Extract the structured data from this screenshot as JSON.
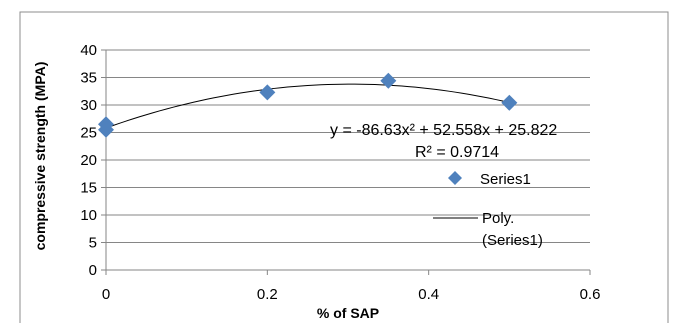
{
  "chart_data": {
    "type": "scatter",
    "xlabel": "% of SAP",
    "ylabel": "compressive strength (MPA)",
    "xlim": [
      0,
      0.6
    ],
    "ylim": [
      0,
      40
    ],
    "x_ticks": [
      0,
      0.2,
      0.4,
      0.6
    ],
    "y_ticks": [
      0,
      5,
      10,
      15,
      20,
      25,
      30,
      35,
      40
    ],
    "grid": "horizontal",
    "series": [
      {
        "name": "Series1",
        "marker": "diamond",
        "color": "#4F81BD",
        "points": [
          {
            "x": 0,
            "y": 26.5
          },
          {
            "x": 0,
            "y": 25.5
          },
          {
            "x": 0.2,
            "y": 32.3
          },
          {
            "x": 0.35,
            "y": 34.4
          },
          {
            "x": 0.5,
            "y": 30.4
          }
        ]
      }
    ],
    "trendline": {
      "name": "Poly. (Series1)",
      "type": "polynomial",
      "order": 2,
      "coefficients": [
        -86.63,
        52.558,
        25.822
      ],
      "x_range": [
        0,
        0.5
      ],
      "color": "#000000"
    },
    "annotations": {
      "equation": "y = -86.63x² + 52.558x + 25.822",
      "r_squared": "R² = 0.9714"
    },
    "legend": {
      "placement": "right",
      "series_label": "Series1",
      "trend_label_line1": "Poly.",
      "trend_label_line2": "(Series1)"
    }
  }
}
